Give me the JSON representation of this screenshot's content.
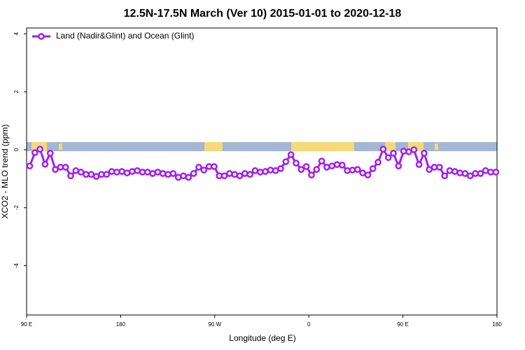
{
  "chart_data": {
    "type": "line",
    "title": "12.5N-17.5N March (Ver 10)   2015-01-01 to 2020-12-18",
    "x_label": "Longitude (deg E)",
    "y_label": "XCO2 - MLO trend (ppm)",
    "xlim": [
      90,
      540
    ],
    "xticks": [
      {
        "value": 90,
        "label": "90 E"
      },
      180,
      {
        "value": 270,
        "label": "90 W"
      },
      {
        "value": 360,
        "label": "0"
      },
      {
        "value": 450,
        "label": "90 E"
      },
      {
        "value": 540,
        "label": "180"
      }
    ],
    "ylim": [
      -5.7,
      4.2
    ],
    "yticks": [
      4,
      2,
      0,
      -2,
      -4
    ],
    "legend": "top-left",
    "x": [
      93,
      97.9,
      102.8,
      107.7,
      112.6,
      117.5,
      122.4,
      127.3,
      132.2,
      137.1,
      142,
      146.9,
      151.8,
      156.7,
      161.6,
      166.5,
      171.4,
      176.3,
      181.2,
      186.1,
      191,
      195.9,
      200.8,
      205.7,
      210.6,
      215.5,
      220.4,
      225.3,
      230.2,
      235.1,
      240,
      244.9,
      249.8,
      254.7,
      259.6,
      264.5,
      269.4,
      274.3,
      279.2,
      284.1,
      289,
      293.9,
      298.8,
      303.7,
      308.6,
      313.5,
      318.4,
      323.3,
      328.2,
      333.1,
      338,
      342.9,
      347.8,
      352.7,
      357.6,
      362.5,
      367.4,
      372.3,
      377.2,
      382.1,
      387,
      391.9,
      396.8,
      401.7,
      406.6,
      411.5,
      416.4,
      421.3,
      426.2,
      431.1,
      436,
      440.9,
      445.8,
      450.7,
      455.6,
      460.5,
      465.4,
      470.3,
      475.2,
      480.1,
      485,
      489.9,
      494.8,
      499.7,
      504.6,
      509.5,
      514.4,
      519.3,
      524.2,
      529.1,
      534,
      538.9
    ],
    "series": [
      {
        "name": "Land (Nadir&Glint) and Ocean (Glint)",
        "color": "#a020f0",
        "values": [
          -0.56,
          -0.1,
          0.02,
          -0.5,
          -0.12,
          -0.68,
          -0.6,
          -0.6,
          -0.9,
          -0.72,
          -0.77,
          -0.85,
          -0.85,
          -0.92,
          -0.85,
          -0.85,
          -0.75,
          -0.77,
          -0.75,
          -0.8,
          -0.75,
          -0.72,
          -0.77,
          -0.77,
          -0.82,
          -0.77,
          -0.82,
          -0.85,
          -0.82,
          -0.95,
          -0.9,
          -0.95,
          -0.82,
          -0.6,
          -0.7,
          -0.58,
          -0.58,
          -0.9,
          -0.9,
          -0.82,
          -0.85,
          -0.9,
          -0.82,
          -0.85,
          -0.72,
          -0.77,
          -0.75,
          -0.7,
          -0.72,
          -0.65,
          -0.41,
          -0.17,
          -0.46,
          -0.68,
          -0.58,
          -0.87,
          -0.68,
          -0.39,
          -0.6,
          -0.56,
          -0.51,
          -0.53,
          -0.72,
          -0.7,
          -0.68,
          -0.8,
          -0.87,
          -0.65,
          -0.43,
          0.02,
          -0.27,
          -0.12,
          -0.56,
          -0.05,
          -0.07,
          0,
          -0.51,
          -0.12,
          -0.68,
          -0.6,
          -0.6,
          -0.9,
          -0.72,
          -0.75,
          -0.8,
          -0.82,
          -0.9,
          -0.82,
          -0.82,
          -0.72,
          -0.77,
          -0.77
        ]
      }
    ]
  }
}
